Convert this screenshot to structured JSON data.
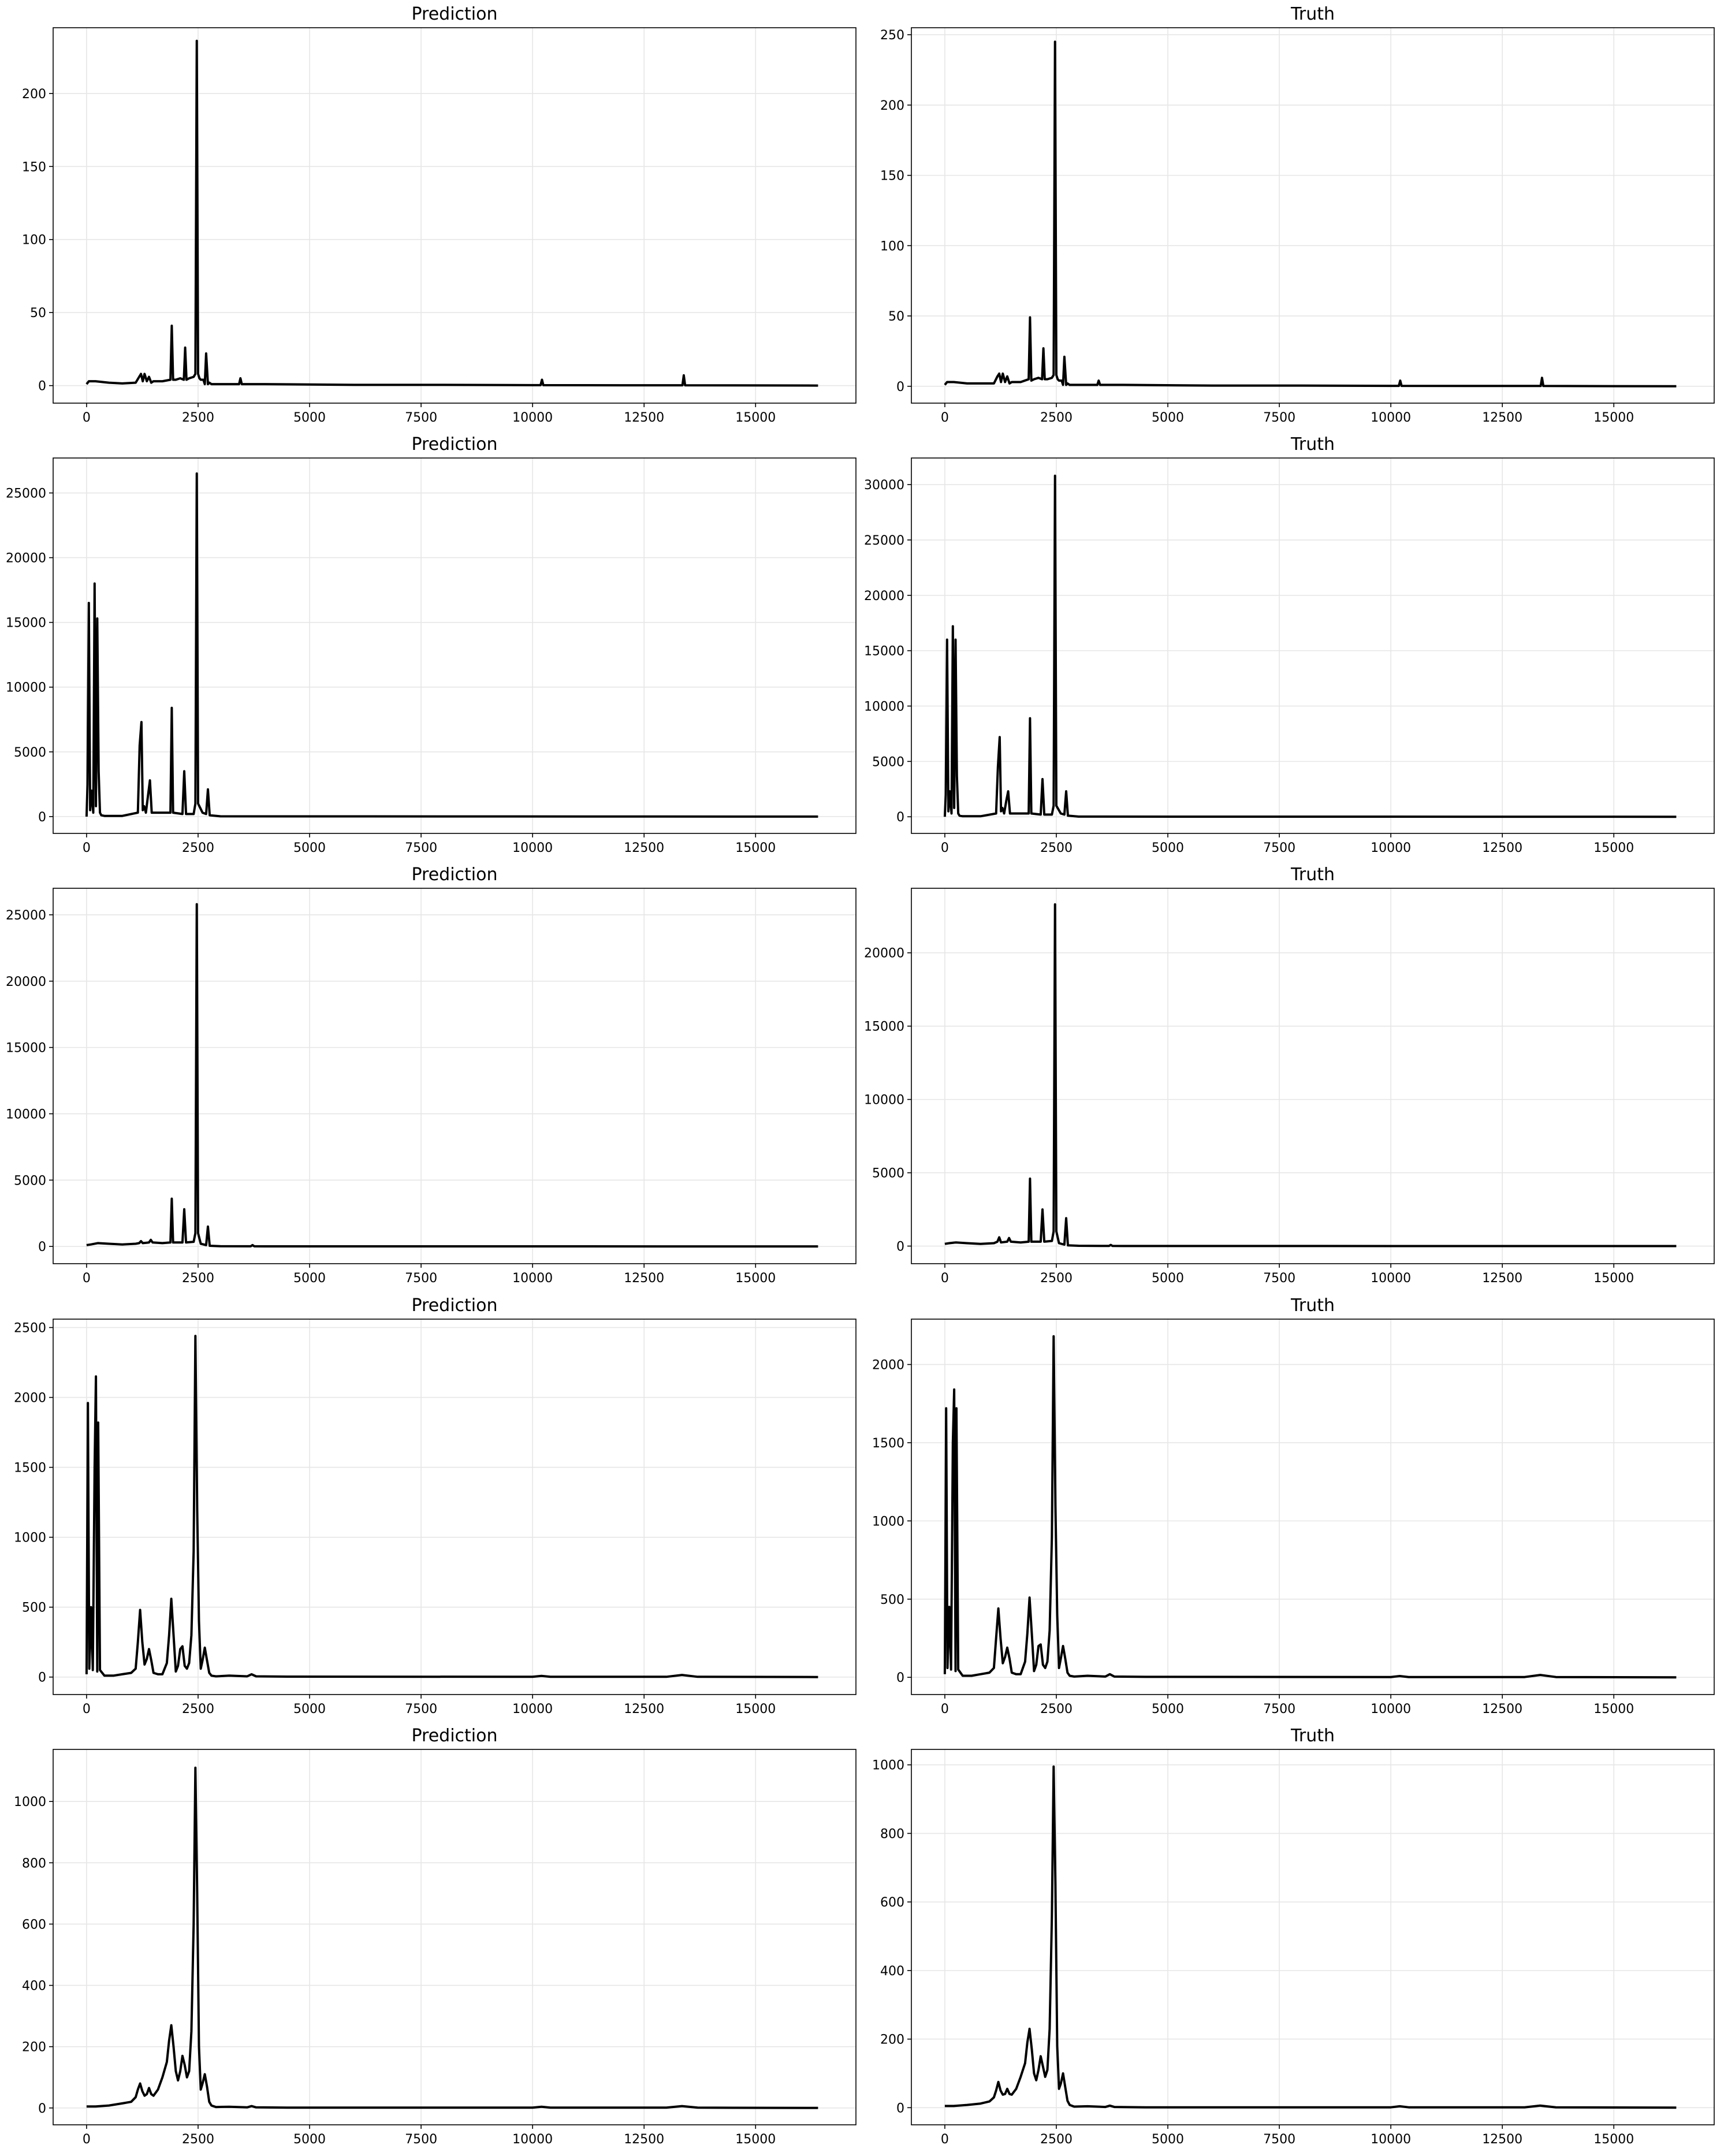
{
  "figure": {
    "rows": 5,
    "cols": 2
  },
  "chart_data": [
    {
      "id": "r0-pred",
      "type": "line",
      "title": "Prediction",
      "xlim": [
        -750,
        17250
      ],
      "ylim": [
        -12,
        245
      ],
      "xticks": [
        0,
        2500,
        5000,
        7500,
        10000,
        12500,
        15000
      ],
      "yticks": [
        0,
        50,
        100,
        150,
        200
      ],
      "x": [
        0,
        50,
        200,
        500,
        800,
        1100,
        1180,
        1220,
        1260,
        1300,
        1350,
        1400,
        1450,
        1500,
        1700,
        1880,
        1910,
        1940,
        2000,
        2100,
        2180,
        2210,
        2240,
        2300,
        2400,
        2440,
        2470,
        2500,
        2530,
        2560,
        2620,
        2650,
        2680,
        2720,
        2750,
        2800,
        3000,
        3420,
        3450,
        3480,
        4000,
        6000,
        8000,
        10000,
        10180,
        10210,
        10240,
        12000,
        13360,
        13390,
        13420,
        16400
      ],
      "y": [
        1,
        3,
        3,
        2,
        1.5,
        2,
        6,
        8,
        3,
        8,
        3,
        6,
        2,
        3,
        3,
        4,
        41,
        4,
        4,
        5,
        4,
        26,
        4,
        5,
        6,
        8,
        236,
        8,
        5,
        4,
        4,
        1,
        22,
        1,
        2,
        1,
        1,
        1,
        5,
        1,
        1,
        0.5,
        0.5,
        0.3,
        0.3,
        4,
        0.3,
        0.2,
        0.2,
        7,
        0.2,
        0
      ]
    },
    {
      "id": "r0-truth",
      "type": "line",
      "title": "Truth",
      "xlim": [
        -750,
        17250
      ],
      "ylim": [
        -12,
        255
      ],
      "xticks": [
        0,
        2500,
        5000,
        7500,
        10000,
        12500,
        15000
      ],
      "yticks": [
        0,
        50,
        100,
        150,
        200,
        250
      ],
      "x": [
        0,
        50,
        200,
        500,
        800,
        1100,
        1180,
        1220,
        1260,
        1300,
        1350,
        1400,
        1450,
        1500,
        1700,
        1880,
        1910,
        1940,
        2000,
        2100,
        2180,
        2210,
        2240,
        2300,
        2400,
        2440,
        2470,
        2500,
        2530,
        2560,
        2620,
        2650,
        2680,
        2720,
        2750,
        2800,
        3000,
        3420,
        3450,
        3480,
        4000,
        6000,
        8000,
        10000,
        10180,
        10210,
        10240,
        12000,
        13360,
        13390,
        13420,
        16400
      ],
      "y": [
        1,
        3,
        3,
        2,
        2,
        2,
        7,
        9,
        3,
        9,
        3,
        7,
        2,
        3,
        3,
        5,
        49,
        4,
        5,
        6,
        5,
        27,
        5,
        5,
        6,
        8,
        245,
        8,
        5,
        4,
        4,
        1,
        21,
        1,
        2,
        1,
        1,
        1,
        4,
        1,
        1,
        0.5,
        0.5,
        0.3,
        0.3,
        4,
        0.3,
        0.2,
        0.2,
        6,
        0.2,
        0
      ]
    },
    {
      "id": "r1-pred",
      "type": "line",
      "title": "Prediction",
      "xlim": [
        -750,
        17250
      ],
      "ylim": [
        -1300,
        27700
      ],
      "xticks": [
        0,
        2500,
        5000,
        7500,
        10000,
        12500,
        15000
      ],
      "yticks": [
        0,
        5000,
        10000,
        15000,
        20000,
        25000
      ],
      "x": [
        0,
        20,
        50,
        80,
        110,
        150,
        180,
        210,
        240,
        270,
        300,
        330,
        400,
        800,
        1150,
        1190,
        1230,
        1260,
        1290,
        1330,
        1380,
        1420,
        1460,
        1500,
        1800,
        1880,
        1910,
        1940,
        2150,
        2190,
        2230,
        2400,
        2440,
        2470,
        2500,
        2600,
        2680,
        2720,
        2760,
        3000,
        16400
      ],
      "y": [
        0,
        2500,
        16500,
        500,
        2000,
        300,
        18000,
        800,
        15300,
        3500,
        300,
        100,
        50,
        50,
        300,
        5500,
        7300,
        500,
        800,
        300,
        1700,
        2800,
        300,
        300,
        300,
        300,
        8400,
        300,
        200,
        3500,
        200,
        200,
        1000,
        26500,
        1000,
        300,
        200,
        2100,
        100,
        20,
        0
      ]
    },
    {
      "id": "r1-truth",
      "type": "line",
      "title": "Truth",
      "xlim": [
        -750,
        17250
      ],
      "ylim": [
        -1500,
        32400
      ],
      "xticks": [
        0,
        2500,
        5000,
        7500,
        10000,
        12500,
        15000
      ],
      "yticks": [
        0,
        5000,
        10000,
        15000,
        20000,
        25000,
        30000
      ],
      "x": [
        0,
        20,
        50,
        80,
        110,
        150,
        180,
        210,
        240,
        270,
        300,
        330,
        400,
        800,
        1150,
        1190,
        1230,
        1260,
        1290,
        1330,
        1380,
        1420,
        1460,
        1500,
        1800,
        1880,
        1910,
        1940,
        2150,
        2190,
        2230,
        2400,
        2440,
        2470,
        2500,
        2600,
        2680,
        2720,
        2760,
        3000,
        16400
      ],
      "y": [
        0,
        2000,
        16000,
        500,
        2300,
        300,
        17200,
        800,
        16000,
        3700,
        300,
        100,
        50,
        50,
        300,
        4500,
        7200,
        500,
        800,
        300,
        1500,
        2300,
        300,
        300,
        300,
        300,
        8900,
        300,
        200,
        3400,
        200,
        200,
        1000,
        30800,
        1000,
        300,
        200,
        2300,
        100,
        20,
        0
      ]
    },
    {
      "id": "r2-pred",
      "type": "line",
      "title": "Prediction",
      "xlim": [
        -750,
        17250
      ],
      "ylim": [
        -1300,
        27000
      ],
      "xticks": [
        0,
        2500,
        5000,
        7500,
        10000,
        12500,
        15000
      ],
      "yticks": [
        0,
        5000,
        10000,
        15000,
        20000,
        25000
      ],
      "x": [
        0,
        100,
        250,
        500,
        800,
        1100,
        1180,
        1220,
        1260,
        1400,
        1440,
        1480,
        1700,
        1880,
        1910,
        1940,
        2150,
        2190,
        2230,
        2400,
        2440,
        2470,
        2500,
        2560,
        2680,
        2720,
        2760,
        3000,
        3680,
        3720,
        3760,
        4000,
        16400
      ],
      "y": [
        100,
        150,
        250,
        200,
        150,
        200,
        250,
        400,
        250,
        300,
        500,
        300,
        250,
        300,
        3600,
        300,
        300,
        2800,
        300,
        350,
        1000,
        25800,
        1000,
        200,
        100,
        1500,
        50,
        20,
        10,
        100,
        10,
        5,
        0
      ]
    },
    {
      "id": "r2-truth",
      "type": "line",
      "title": "Truth",
      "xlim": [
        -750,
        17250
      ],
      "ylim": [
        -1200,
        24400
      ],
      "xticks": [
        0,
        2500,
        5000,
        7500,
        10000,
        12500,
        15000
      ],
      "yticks": [
        0,
        5000,
        10000,
        15000,
        20000
      ],
      "x": [
        0,
        100,
        250,
        500,
        800,
        1100,
        1180,
        1220,
        1260,
        1400,
        1440,
        1480,
        1700,
        1880,
        1910,
        1940,
        2150,
        2190,
        2230,
        2400,
        2440,
        2470,
        2500,
        2560,
        2680,
        2720,
        2760,
        3000,
        3680,
        3720,
        3760,
        4000,
        16400
      ],
      "y": [
        150,
        200,
        250,
        200,
        150,
        200,
        300,
        600,
        250,
        300,
        550,
        300,
        250,
        300,
        4600,
        300,
        300,
        2500,
        300,
        350,
        1000,
        23300,
        1000,
        200,
        100,
        1900,
        50,
        20,
        10,
        80,
        10,
        5,
        0
      ]
    },
    {
      "id": "r3-pred",
      "type": "line",
      "title": "Prediction",
      "xlim": [
        -750,
        17250
      ],
      "ylim": [
        -125,
        2560
      ],
      "xticks": [
        0,
        2500,
        5000,
        7500,
        10000,
        12500,
        15000
      ],
      "yticks": [
        0,
        500,
        1000,
        1500,
        2000,
        2500
      ],
      "x": [
        0,
        30,
        60,
        100,
        140,
        180,
        210,
        240,
        260,
        300,
        400,
        600,
        800,
        1000,
        1100,
        1150,
        1200,
        1250,
        1300,
        1350,
        1400,
        1450,
        1500,
        1600,
        1700,
        1800,
        1850,
        1900,
        1950,
        2000,
        2050,
        2100,
        2150,
        2200,
        2250,
        2300,
        2350,
        2400,
        2440,
        2480,
        2520,
        2560,
        2600,
        2650,
        2700,
        2750,
        2800,
        2900,
        3200,
        3600,
        3700,
        3800,
        4500,
        10000,
        10200,
        10400,
        13000,
        13350,
        13700,
        16400
      ],
      "y": [
        20,
        1960,
        60,
        500,
        50,
        1500,
        2150,
        40,
        1820,
        50,
        10,
        10,
        20,
        30,
        60,
        250,
        480,
        250,
        90,
        130,
        200,
        120,
        30,
        20,
        20,
        100,
        300,
        560,
        300,
        40,
        80,
        200,
        220,
        80,
        60,
        100,
        300,
        900,
        2440,
        1200,
        400,
        60,
        120,
        210,
        120,
        30,
        10,
        5,
        10,
        5,
        20,
        5,
        3,
        2,
        8,
        2,
        2,
        15,
        2,
        0
      ]
    },
    {
      "id": "r3-truth",
      "type": "line",
      "title": "Truth",
      "xlim": [
        -750,
        17250
      ],
      "ylim": [
        -110,
        2290
      ],
      "xticks": [
        0,
        2500,
        5000,
        7500,
        10000,
        12500,
        15000
      ],
      "yticks": [
        0,
        500,
        1000,
        1500,
        2000
      ],
      "x": [
        0,
        30,
        60,
        100,
        140,
        180,
        210,
        240,
        260,
        300,
        400,
        600,
        800,
        1000,
        1100,
        1150,
        1200,
        1250,
        1300,
        1350,
        1400,
        1450,
        1500,
        1600,
        1700,
        1800,
        1850,
        1900,
        1950,
        2000,
        2050,
        2100,
        2150,
        2200,
        2250,
        2300,
        2350,
        2400,
        2440,
        2480,
        2520,
        2560,
        2600,
        2650,
        2700,
        2750,
        2800,
        2900,
        3200,
        3600,
        3700,
        3800,
        4500,
        10000,
        10200,
        10400,
        13000,
        13350,
        13700,
        16400
      ],
      "y": [
        20,
        1720,
        60,
        450,
        50,
        1500,
        1840,
        40,
        1720,
        50,
        10,
        10,
        20,
        30,
        60,
        250,
        440,
        250,
        90,
        130,
        190,
        120,
        30,
        20,
        20,
        100,
        280,
        510,
        280,
        40,
        80,
        200,
        210,
        80,
        60,
        100,
        300,
        900,
        2180,
        1100,
        400,
        60,
        120,
        200,
        120,
        30,
        10,
        5,
        10,
        5,
        20,
        5,
        3,
        2,
        8,
        2,
        2,
        15,
        2,
        0
      ]
    },
    {
      "id": "r4-pred",
      "type": "line",
      "title": "Prediction",
      "xlim": [
        -750,
        17250
      ],
      "ylim": [
        -55,
        1170
      ],
      "xticks": [
        0,
        2500,
        5000,
        7500,
        10000,
        12500,
        15000
      ],
      "yticks": [
        0,
        200,
        400,
        600,
        800,
        1000
      ],
      "x": [
        0,
        200,
        500,
        800,
        1000,
        1100,
        1150,
        1200,
        1250,
        1300,
        1350,
        1400,
        1450,
        1500,
        1600,
        1700,
        1800,
        1850,
        1900,
        1950,
        2000,
        2050,
        2100,
        2150,
        2200,
        2250,
        2300,
        2350,
        2400,
        2440,
        2480,
        2520,
        2560,
        2600,
        2650,
        2700,
        2750,
        2800,
        2900,
        3200,
        3600,
        3700,
        3800,
        4500,
        10000,
        10200,
        10400,
        13000,
        13350,
        13700,
        16400
      ],
      "y": [
        5,
        5,
        8,
        15,
        20,
        35,
        60,
        80,
        55,
        40,
        45,
        65,
        45,
        40,
        60,
        100,
        150,
        220,
        270,
        200,
        120,
        90,
        120,
        170,
        140,
        100,
        120,
        250,
        600,
        1110,
        700,
        200,
        60,
        80,
        110,
        70,
        20,
        8,
        3,
        4,
        2,
        6,
        2,
        1,
        1,
        4,
        1,
        1,
        6,
        1,
        0
      ]
    },
    {
      "id": "r4-truth",
      "type": "line",
      "title": "Truth",
      "xlim": [
        -750,
        17250
      ],
      "ylim": [
        -50,
        1045
      ],
      "xticks": [
        0,
        2500,
        5000,
        7500,
        10000,
        12500,
        15000
      ],
      "yticks": [
        0,
        200,
        400,
        600,
        800,
        1000
      ],
      "x": [
        0,
        200,
        500,
        800,
        1000,
        1100,
        1150,
        1200,
        1250,
        1300,
        1350,
        1400,
        1450,
        1500,
        1600,
        1700,
        1800,
        1850,
        1900,
        1950,
        2000,
        2050,
        2100,
        2150,
        2200,
        2250,
        2300,
        2350,
        2400,
        2440,
        2480,
        2520,
        2560,
        2600,
        2650,
        2700,
        2750,
        2800,
        2900,
        3200,
        3600,
        3700,
        3800,
        4500,
        10000,
        10200,
        10400,
        13000,
        13350,
        13700,
        16400
      ],
      "y": [
        5,
        5,
        8,
        12,
        18,
        30,
        50,
        75,
        50,
        38,
        40,
        55,
        40,
        38,
        55,
        90,
        130,
        190,
        230,
        170,
        100,
        80,
        110,
        150,
        120,
        90,
        110,
        230,
        560,
        995,
        650,
        180,
        55,
        70,
        100,
        60,
        20,
        8,
        3,
        4,
        2,
        6,
        2,
        1,
        1,
        4,
        1,
        1,
        6,
        1,
        0
      ]
    }
  ]
}
